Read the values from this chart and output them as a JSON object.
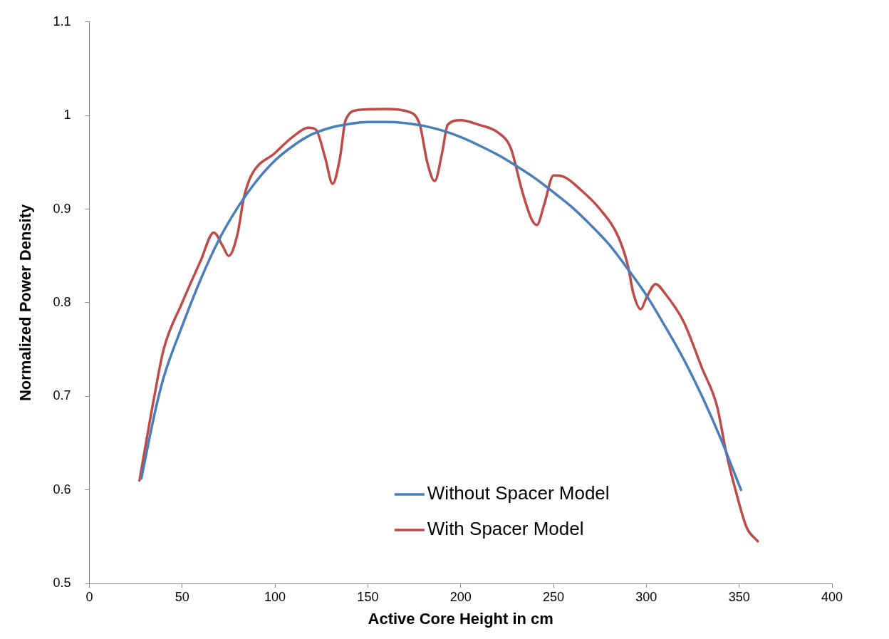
{
  "chart_data": {
    "type": "line",
    "xlabel": "Active Core Height in cm",
    "ylabel": "Normalized Power Density",
    "xlim": [
      0,
      400
    ],
    "xticks": [
      0,
      50,
      100,
      150,
      200,
      250,
      300,
      350,
      400
    ],
    "ylim": [
      0.5,
      1.1
    ],
    "yticks": [
      0.5,
      0.6,
      0.7,
      0.8,
      0.9,
      1,
      1.1
    ],
    "grid": false,
    "legend": "bottom",
    "marker": "none",
    "line_style": "solid",
    "series": [
      {
        "name": "Without Spacer Model",
        "color": "#4a7ebb",
        "x": [
          28,
          35,
          40,
          50,
          60,
          70,
          80,
          90,
          100,
          110,
          120,
          130,
          140,
          150,
          160,
          170,
          180,
          190,
          200,
          210,
          220,
          230,
          240,
          250,
          260,
          270,
          280,
          290,
          300,
          310,
          320,
          330,
          340,
          351
        ],
        "values": [
          0.612,
          0.68,
          0.72,
          0.775,
          0.825,
          0.868,
          0.902,
          0.93,
          0.952,
          0.968,
          0.98,
          0.987,
          0.991,
          0.993,
          0.993,
          0.992,
          0.989,
          0.984,
          0.977,
          0.968,
          0.958,
          0.946,
          0.933,
          0.918,
          0.902,
          0.883,
          0.862,
          0.836,
          0.808,
          0.775,
          0.74,
          0.7,
          0.655,
          0.6
        ]
      },
      {
        "name": "With Spacer Model",
        "color": "#be4b48",
        "x": [
          27,
          35,
          40,
          50,
          60,
          67,
          72,
          75,
          80,
          83,
          87,
          100,
          110,
          118,
          122,
          127,
          131,
          135,
          138,
          145,
          160,
          172,
          178,
          182,
          186,
          190,
          193,
          200,
          210,
          220,
          227,
          233,
          238,
          241,
          245,
          250,
          255,
          265,
          275,
          285,
          290,
          293,
          297,
          300,
          305,
          310,
          320,
          330,
          338,
          343,
          348,
          354,
          360
        ],
        "values": [
          0.61,
          0.7,
          0.75,
          0.8,
          0.845,
          0.875,
          0.86,
          0.85,
          0.875,
          0.91,
          0.935,
          0.96,
          0.978,
          0.987,
          0.985,
          0.955,
          0.927,
          0.955,
          0.995,
          1.006,
          1.007,
          1.004,
          0.99,
          0.95,
          0.93,
          0.96,
          0.99,
          0.995,
          0.99,
          0.982,
          0.965,
          0.92,
          0.89,
          0.883,
          0.905,
          0.936,
          0.935,
          0.92,
          0.9,
          0.87,
          0.84,
          0.81,
          0.793,
          0.805,
          0.82,
          0.81,
          0.78,
          0.73,
          0.69,
          0.64,
          0.6,
          0.56,
          0.545
        ]
      }
    ]
  }
}
